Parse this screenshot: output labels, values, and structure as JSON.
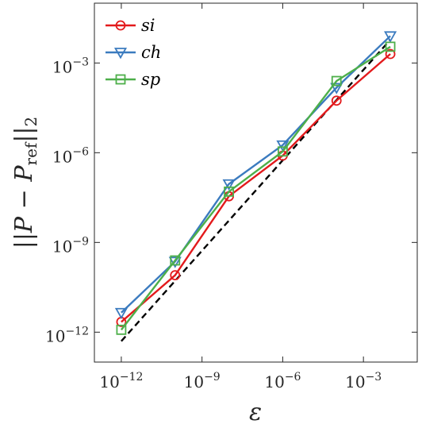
{
  "chart_data": {
    "type": "line",
    "title": "",
    "xlabel": "ε",
    "ylabel": "||P − P_ref||₂",
    "ylabel_parts": {
      "pre": "||",
      "var": "P",
      "minus": " − ",
      "sub_var": "P",
      "sub": "ref",
      "post": "||",
      "norm_sub": "2"
    },
    "x_scale": "log",
    "y_scale": "log",
    "xlim": [
      1e-13,
      0.1
    ],
    "ylim": [
      1e-13,
      0.1
    ],
    "x_tick_values": [
      1e-12,
      1e-09,
      1e-06,
      0.001
    ],
    "y_tick_values": [
      1e-12,
      1e-09,
      1e-06,
      0.001
    ],
    "x_tick_labels": [
      {
        "base": "10",
        "exp": "−12"
      },
      {
        "base": "10",
        "exp": "−9"
      },
      {
        "base": "10",
        "exp": "−6"
      },
      {
        "base": "10",
        "exp": "−3"
      }
    ],
    "y_tick_labels": [
      {
        "base": "10",
        "exp": "−12"
      },
      {
        "base": "10",
        "exp": "−9"
      },
      {
        "base": "10",
        "exp": "−6"
      },
      {
        "base": "10",
        "exp": "−3"
      }
    ],
    "grid": false,
    "legend_position": "top-left",
    "x": [
      1e-12,
      1e-10,
      1e-08,
      1e-06,
      0.0001,
      0.01
    ],
    "series": [
      {
        "name": "si",
        "color": "#e31a1c",
        "marker": "circle",
        "values": [
          2.2e-12,
          8e-11,
          3.5e-08,
          8e-07,
          5.5e-05,
          0.002
        ]
      },
      {
        "name": "ch",
        "color": "#3b7bbf",
        "marker": "triangle-down",
        "values": [
          4.5e-12,
          2.3e-10,
          9e-08,
          1.8e-06,
          0.00015,
          0.008
        ]
      },
      {
        "name": "sp",
        "color": "#4daf4a",
        "marker": "square",
        "values": [
          1.2e-12,
          2.5e-10,
          5e-08,
          1.1e-06,
          0.00025,
          0.0035
        ]
      }
    ],
    "reference_line": {
      "style": "dashed",
      "color": "#000000",
      "x": [
        1e-12,
        0.01
      ],
      "y": [
        5e-13,
        0.006
      ]
    }
  }
}
